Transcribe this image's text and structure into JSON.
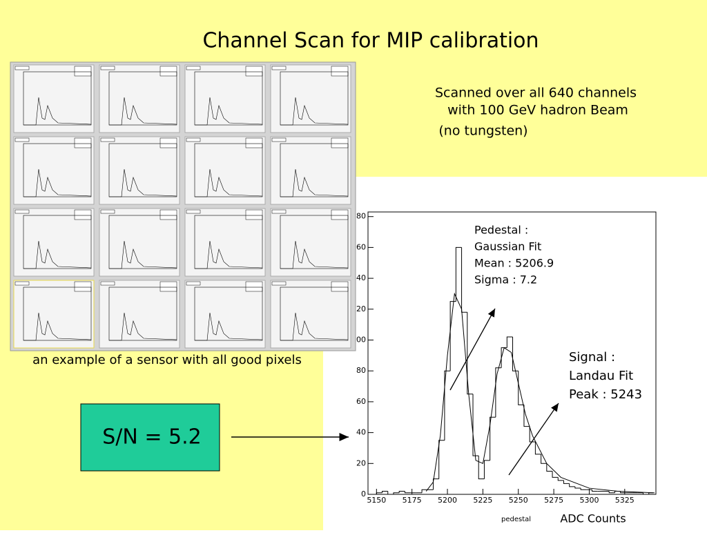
{
  "slide": {
    "title": "Channel Scan for MIP calibration",
    "note_lines": [
      "Scanned over all 640 channels",
      "with 100 GeV hadron Beam",
      "(no tungsten)"
    ],
    "caption": "an example of a sensor with all good pixels",
    "ratio": "S/N = 5.2"
  },
  "chart_data": {
    "type": "histogram",
    "bins": [
      5150,
      5154,
      5158,
      5162,
      5166,
      5170,
      5174,
      5178,
      5182,
      5186,
      5190,
      5194,
      5198,
      5202,
      5206,
      5210,
      5214,
      5218,
      5222,
      5226,
      5230,
      5234,
      5238,
      5242,
      5246,
      5250,
      5254,
      5258,
      5262,
      5266,
      5270,
      5274,
      5278,
      5282,
      5286,
      5290,
      5294,
      5298,
      5302,
      5306,
      5310,
      5314,
      5318,
      5322,
      5326,
      5330,
      5334,
      5338,
      5342,
      5346
    ],
    "counts": [
      1,
      2,
      0,
      1,
      2,
      1,
      1,
      1,
      3,
      3,
      10,
      35,
      80,
      125,
      160,
      118,
      65,
      25,
      10,
      22,
      50,
      82,
      95,
      102,
      80,
      58,
      44,
      34,
      26,
      20,
      15,
      11,
      9,
      7,
      5,
      4,
      3,
      3,
      2,
      2,
      2,
      1,
      2,
      1,
      1,
      1,
      1,
      0,
      1
    ],
    "fit": {
      "x": [
        5185,
        5190,
        5195,
        5200,
        5205,
        5210,
        5215,
        5220,
        5225,
        5230,
        5235,
        5240,
        5245,
        5250,
        5255,
        5260,
        5270,
        5280,
        5300,
        5320,
        5345
      ],
      "y": [
        2,
        8,
        38,
        90,
        130,
        120,
        65,
        22,
        20,
        45,
        78,
        95,
        92,
        72,
        52,
        38,
        20,
        11,
        4,
        2,
        1
      ]
    },
    "xlim": [
      5144,
      5347
    ],
    "xticks": [
      5150,
      5175,
      5200,
      5225,
      5250,
      5275,
      5300,
      5325
    ],
    "ylim": [
      0,
      183
    ],
    "yticks": [
      0,
      20,
      40,
      60,
      {
        "value": 80,
        "label": "80"
      },
      {
        "value": 100,
        "label": "00"
      },
      {
        "value": 120,
        "label": "20"
      },
      {
        "value": 140,
        "label": "40"
      },
      {
        "value": 160,
        "label": "60"
      },
      {
        "value": 180,
        "label": "80"
      }
    ],
    "xlabel": "ADC Counts",
    "sublabel": "pedestal",
    "annotations": {
      "pedestal": [
        "Pedestal :",
        "Gaussian Fit",
        "Mean : 5206.9",
        "Sigma : 7.2"
      ],
      "signal": [
        "Signal :",
        "Landau Fit",
        "Peak : 5243"
      ]
    }
  }
}
